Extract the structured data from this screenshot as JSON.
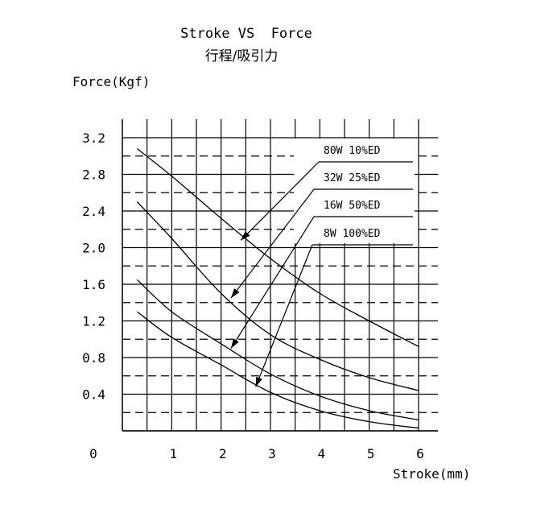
{
  "chart_data": {
    "type": "line",
    "title": "Stroke VS  Force",
    "subtitle": "行程/吸引力",
    "ylabel": "Force(Kgf)",
    "xlabel": "Stroke(mm)",
    "xlim": [
      0,
      6
    ],
    "ylim": [
      0,
      3.2
    ],
    "origin_label": "0",
    "x_ticks": [
      {
        "value": 1,
        "label": "1"
      },
      {
        "value": 2,
        "label": "2"
      },
      {
        "value": 3,
        "label": "3"
      },
      {
        "value": 4,
        "label": "4"
      },
      {
        "value": 5,
        "label": "5"
      },
      {
        "value": 6,
        "label": "6"
      }
    ],
    "y_ticks": [
      {
        "value": 0.4,
        "label": "0.4"
      },
      {
        "value": 0.8,
        "label": "0.8"
      },
      {
        "value": 1.2,
        "label": "1.2"
      },
      {
        "value": 1.6,
        "label": "1.6"
      },
      {
        "value": 2.0,
        "label": "2.0"
      },
      {
        "value": 2.4,
        "label": "2.4"
      },
      {
        "value": 2.8,
        "label": "2.8"
      },
      {
        "value": 3.2,
        "label": "3.2"
      }
    ],
    "grid": {
      "vertical_step": 0.5,
      "solid_step": 0.4,
      "dashed_offset": 0.2
    },
    "series": [
      {
        "name": "80W 10%ED",
        "x": [
          0.3,
          1.0,
          2.0,
          3.0,
          4.0,
          5.0,
          6.0
        ],
        "y": [
          3.08,
          2.78,
          2.32,
          1.88,
          1.5,
          1.2,
          0.92
        ]
      },
      {
        "name": "32W 25%ED",
        "x": [
          0.3,
          1.0,
          2.0,
          3.0,
          4.0,
          5.0,
          6.0
        ],
        "y": [
          2.5,
          2.1,
          1.5,
          1.05,
          0.78,
          0.58,
          0.44
        ]
      },
      {
        "name": "16W  50%ED",
        "x": [
          0.3,
          1.0,
          2.0,
          3.0,
          4.0,
          5.0,
          6.0
        ],
        "y": [
          1.65,
          1.3,
          0.95,
          0.62,
          0.38,
          0.22,
          0.12
        ]
      },
      {
        "name": "8W 100%ED",
        "x": [
          0.3,
          1.0,
          2.0,
          3.0,
          4.0,
          5.0,
          6.0
        ],
        "y": [
          1.3,
          1.02,
          0.72,
          0.42,
          0.22,
          0.1,
          0.03
        ]
      }
    ],
    "legend_arrow_targets": [
      {
        "x": 2.4,
        "y": 2.08
      },
      {
        "x": 2.2,
        "y": 1.45
      },
      {
        "x": 2.2,
        "y": 0.9
      },
      {
        "x": 2.7,
        "y": 0.48
      }
    ]
  }
}
